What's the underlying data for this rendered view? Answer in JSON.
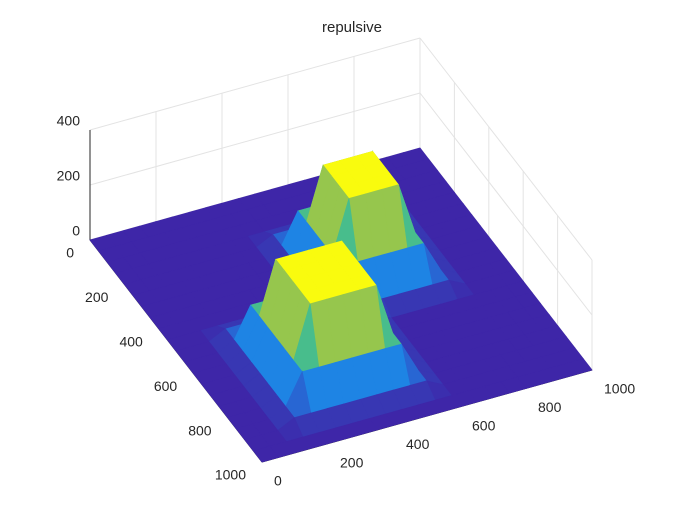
{
  "chart_data": {
    "type": "surface",
    "title": "repulsive",
    "colormap": "parula",
    "grid": true,
    "x": [
      0,
      50,
      100,
      150,
      200,
      250,
      300,
      350,
      400,
      450,
      500,
      550,
      600,
      650,
      700,
      750,
      800,
      850,
      900,
      950,
      1000
    ],
    "y": [
      0,
      50,
      100,
      150,
      200,
      250,
      300,
      350,
      400,
      450,
      500,
      550,
      600,
      650,
      700,
      750,
      800,
      850,
      900,
      950,
      1000
    ],
    "z": [
      [
        0,
        0,
        0,
        0,
        0,
        0,
        0,
        0,
        0,
        0,
        0,
        0,
        0,
        0,
        0,
        0,
        0,
        0,
        0,
        0,
        0
      ],
      [
        0,
        0,
        0,
        0,
        0,
        0,
        0,
        0,
        0,
        0,
        0,
        0,
        0,
        0,
        0,
        0,
        0,
        0,
        0,
        0,
        0
      ],
      [
        0,
        0,
        0,
        0,
        0,
        0,
        0,
        0,
        0,
        0,
        0,
        0,
        0,
        0,
        0,
        0,
        0,
        0,
        0,
        0,
        0
      ],
      [
        0,
        0,
        0,
        0,
        0,
        0,
        0,
        0,
        0,
        0,
        0,
        0,
        0,
        0,
        0,
        0,
        0,
        0,
        0,
        0,
        0
      ],
      [
        0,
        0,
        0,
        0,
        0,
        0,
        0,
        0,
        0,
        30,
        30,
        30,
        30,
        30,
        30,
        30,
        30,
        0,
        0,
        0,
        0
      ],
      [
        0,
        0,
        0,
        0,
        0,
        0,
        0,
        0,
        0,
        30,
        140,
        140,
        140,
        140,
        140,
        140,
        30,
        0,
        0,
        0,
        0
      ],
      [
        0,
        0,
        0,
        0,
        0,
        0,
        0,
        0,
        0,
        30,
        140,
        330,
        330,
        330,
        330,
        140,
        30,
        0,
        0,
        0,
        0
      ],
      [
        0,
        0,
        0,
        0,
        0,
        0,
        0,
        0,
        0,
        30,
        140,
        330,
        330,
        330,
        330,
        140,
        30,
        0,
        0,
        0,
        0
      ],
      [
        0,
        0,
        0,
        0,
        0,
        0,
        0,
        0,
        0,
        30,
        140,
        330,
        330,
        330,
        330,
        140,
        30,
        0,
        0,
        0,
        0
      ],
      [
        0,
        0,
        0,
        0,
        0,
        0,
        0,
        0,
        0,
        30,
        140,
        330,
        330,
        330,
        330,
        140,
        30,
        0,
        0,
        0,
        0
      ],
      [
        0,
        0,
        0,
        30,
        30,
        30,
        30,
        30,
        30,
        30,
        140,
        140,
        140,
        140,
        140,
        140,
        30,
        0,
        0,
        0,
        0
      ],
      [
        0,
        0,
        0,
        30,
        140,
        140,
        140,
        140,
        140,
        140,
        140,
        30,
        30,
        30,
        30,
        30,
        30,
        0,
        0,
        0,
        0
      ],
      [
        0,
        0,
        0,
        30,
        140,
        330,
        330,
        330,
        330,
        330,
        140,
        30,
        0,
        0,
        0,
        0,
        0,
        0,
        0,
        0,
        0
      ],
      [
        0,
        0,
        0,
        30,
        140,
        330,
        330,
        330,
        330,
        330,
        140,
        30,
        0,
        0,
        0,
        0,
        0,
        0,
        0,
        0,
        0
      ],
      [
        0,
        0,
        0,
        30,
        140,
        330,
        330,
        330,
        330,
        330,
        140,
        30,
        0,
        0,
        0,
        0,
        0,
        0,
        0,
        0,
        0
      ],
      [
        0,
        0,
        0,
        30,
        140,
        330,
        330,
        330,
        330,
        330,
        140,
        30,
        0,
        0,
        0,
        0,
        0,
        0,
        0,
        0,
        0
      ],
      [
        0,
        0,
        0,
        30,
        140,
        330,
        330,
        330,
        330,
        330,
        140,
        30,
        0,
        0,
        0,
        0,
        0,
        0,
        0,
        0,
        0
      ],
      [
        0,
        0,
        0,
        30,
        140,
        140,
        140,
        140,
        140,
        140,
        140,
        30,
        0,
        0,
        0,
        0,
        0,
        0,
        0,
        0,
        0
      ],
      [
        0,
        0,
        0,
        30,
        30,
        30,
        30,
        30,
        30,
        30,
        30,
        30,
        0,
        0,
        0,
        0,
        0,
        0,
        0,
        0,
        0
      ],
      [
        0,
        0,
        0,
        0,
        0,
        0,
        0,
        0,
        0,
        0,
        0,
        0,
        0,
        0,
        0,
        0,
        0,
        0,
        0,
        0,
        0
      ],
      [
        0,
        0,
        0,
        0,
        0,
        0,
        0,
        0,
        0,
        0,
        0,
        0,
        0,
        0,
        0,
        0,
        0,
        0,
        0,
        0,
        0
      ]
    ],
    "xlim": [
      0,
      1000
    ],
    "xticks": [
      0,
      200,
      400,
      600,
      800,
      1000
    ],
    "ylim": [
      0,
      1000
    ],
    "yticks": [
      0,
      200,
      400,
      600,
      800,
      1000
    ],
    "zlim": [
      0,
      400
    ],
    "zticks": [
      0,
      200,
      400
    ]
  }
}
